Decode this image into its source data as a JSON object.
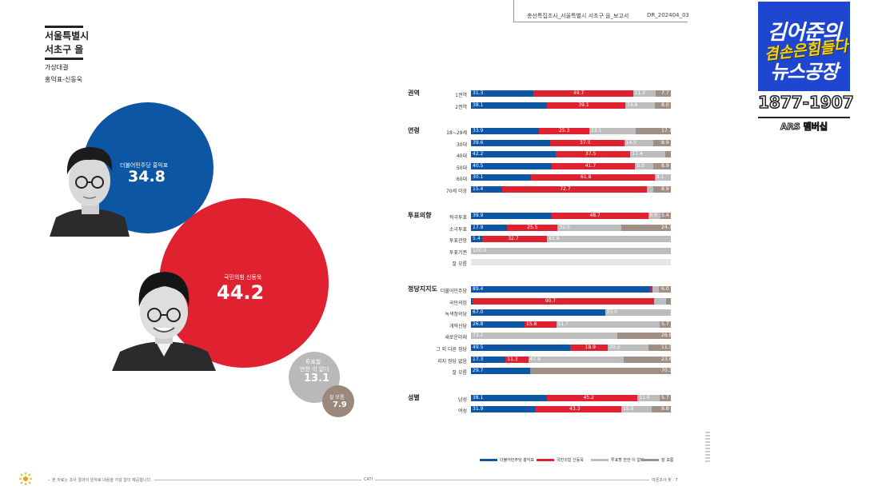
{
  "header": {
    "region_line1": "서울특별시",
    "region_line2": "서초구 을",
    "matchup_line1": "가상대결",
    "matchup_line2": "홍익표-신동욱"
  },
  "top_meta": {
    "report": "총선특집조사_서울특별시 서초구 을_보고서",
    "code": "DR_202404_03"
  },
  "bubbles": [
    {
      "label": "더불어민주당 홍익표",
      "value": "34.8",
      "color": "#0d56a3"
    },
    {
      "label": "국민의힘 신동욱",
      "value": "44.2",
      "color": "#e02130"
    },
    {
      "label_line1": "투표할",
      "label_line2": "만한 이 없다",
      "value": "13.1",
      "color": "#b9b9b9"
    },
    {
      "label": "잘 모름",
      "value": "7.9",
      "color": "#9a887d"
    }
  ],
  "chart_data": {
    "type": "bar",
    "orientation": "horizontal-stacked-100",
    "series": [
      {
        "name": "더불어민주당 홍익표",
        "color": "#0d56a3"
      },
      {
        "name": "국민의힘 신동욱",
        "color": "#e02130"
      },
      {
        "name": "투표할 만한 이 없다",
        "color": "#bdbdbd"
      },
      {
        "name": "잘 모름",
        "color": "#a08f84"
      }
    ],
    "groups": [
      {
        "name": "권역",
        "rows": [
          {
            "label": "1권역",
            "values": [
              31.3,
              49.7,
              11.3,
              7.7
            ]
          },
          {
            "label": "2권역",
            "values": [
              38.1,
              39.1,
              14.8,
              8.0
            ]
          }
        ]
      },
      {
        "name": "연령",
        "rows": [
          {
            "label": "18~29세",
            "values": [
              33.9,
              25.3,
              23.1,
              17.7
            ]
          },
          {
            "label": "30대",
            "values": [
              39.6,
              37.0,
              14.5,
              8.9
            ]
          },
          {
            "label": "40대",
            "values": [
              42.2,
              37.5,
              17.4,
              2.9
            ]
          },
          {
            "label": "50대",
            "values": [
              40.5,
              41.7,
              9.0,
              8.9
            ]
          },
          {
            "label": "60대",
            "values": [
              30.1,
              61.8,
              8.1,
              0
            ]
          },
          {
            "label": "70세 이상",
            "values": [
              15.4,
              72.7,
              3.0,
              8.9
            ]
          }
        ]
      },
      {
        "name": "투표의향",
        "rows": [
          {
            "label": "적극투표",
            "values": [
              39.9,
              48.7,
              6.0,
              5.4
            ]
          },
          {
            "label": "소극투표",
            "values": [
              17.9,
              25.5,
              32.0,
              24.7
            ]
          },
          {
            "label": "투표관망",
            "values": [
              5.4,
              32.7,
              61.8,
              0
            ]
          },
          {
            "label": "투표기권",
            "values": [
              0,
              0,
              100.0,
              0
            ]
          },
          {
            "label": "잘 모름",
            "values": [
              0,
              0,
              0,
              0
            ]
          }
        ]
      },
      {
        "name": "정당지지도",
        "rows": [
          {
            "label": "더불어민주당",
            "values": [
              89.4,
              1.2,
              3.4,
              6.0
            ]
          },
          {
            "label": "국민의힘",
            "values": [
              0.8,
              90.7,
              5.9,
              2.6
            ]
          },
          {
            "label": "녹색정의당",
            "values": [
              67.0,
              0,
              33.0,
              0
            ]
          },
          {
            "label": "개혁신당",
            "values": [
              26.8,
              15.8,
              51.7,
              5.7
            ]
          },
          {
            "label": "새로운미래",
            "values": [
              0,
              0,
              73.2,
              26.8
            ]
          },
          {
            "label": "그 외 다른 정당",
            "values": [
              49.5,
              18.9,
              20.3,
              11.3
            ]
          },
          {
            "label": "지지 정당 없음",
            "values": [
              17.3,
              11.3,
              47.8,
              23.6
            ]
          },
          {
            "label": "잘 모름",
            "values": [
              29.7,
              0,
              0,
              70.3
            ]
          }
        ]
      },
      {
        "name": "성별",
        "rows": [
          {
            "label": "남성",
            "values": [
              38.1,
              45.2,
              11.0,
              5.7
            ]
          },
          {
            "label": "여성",
            "values": [
              31.9,
              43.3,
              15.0,
              9.8
            ]
          }
        ]
      }
    ],
    "labels_shown": {
      "권역": [
        [
          "31.3",
          "49.7",
          "11.3",
          "7.7"
        ],
        [
          "38.1",
          "39.1",
          "14.8",
          "8.0"
        ]
      ],
      "연령": [
        [
          "33.9",
          "25.3",
          "23.1",
          "17.7"
        ],
        [
          "39.6",
          "37.0",
          "14.5",
          "8.9"
        ],
        [
          "42.2",
          "37.5",
          "17.4",
          ""
        ],
        [
          "40.5",
          "41.7",
          "9.0",
          "8.9"
        ],
        [
          "30.1",
          "61.8",
          "8.1",
          ""
        ],
        [
          "15.4",
          "72.7",
          "",
          "8.9"
        ]
      ],
      "투표의향": [
        [
          "39.9",
          "48.7",
          "6.0",
          "5.4"
        ],
        [
          "17.9",
          "25.5",
          "32.0",
          "24.7"
        ],
        [
          "5.4",
          "32.7",
          "61.8",
          ""
        ],
        [
          "",
          "",
          "100.0",
          ""
        ],
        [
          "",
          "",
          "",
          ""
        ]
      ],
      "정당지지도": [
        [
          "89.4",
          "",
          "",
          "6.0"
        ],
        [
          "",
          "90.7",
          "",
          ""
        ],
        [
          "67.0",
          "",
          "33.0",
          ""
        ],
        [
          "26.8",
          "15.8",
          "51.7",
          "5.7"
        ],
        [
          "",
          "",
          "73.2",
          "26.8"
        ],
        [
          "49.5",
          "18.9",
          "20.3",
          "11.3"
        ],
        [
          "17.3",
          "11.3",
          "47.8",
          "23.6"
        ],
        [
          "29.7",
          "",
          "",
          "70.3"
        ]
      ],
      "성별": [
        [
          "38.1",
          "45.2",
          "11.0",
          "5.7"
        ],
        [
          "31.9",
          "43.3",
          "15.0",
          "9.8"
        ]
      ]
    },
    "xlim": [
      0,
      100
    ]
  },
  "footer": {
    "note": "본 자료는 조사 결과의 원자료 내용을 가감 없이 제공합니다.",
    "center": "CATI",
    "page": "여론조사 꽃 · 7"
  },
  "broadcast": {
    "title_line1": "김어준의",
    "title_yellow": "겸손은힘들다",
    "title_line2": "뉴스공장",
    "phone": "1877-1907",
    "ars": "ARS 멤버십"
  }
}
